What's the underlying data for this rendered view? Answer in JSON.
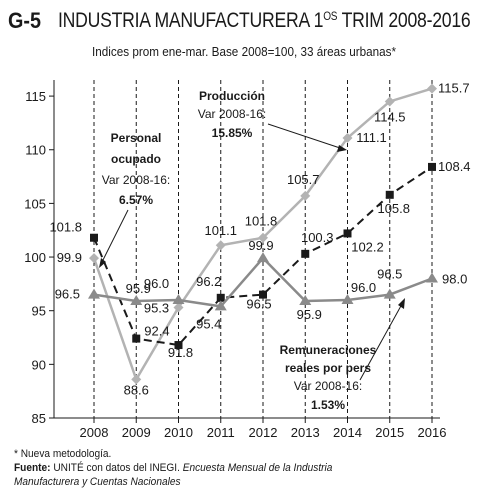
{
  "header": {
    "code": "G-5",
    "title": "INDUSTRIA MANUFACTURERA 1",
    "title_sup": "OS",
    "title_end": " TRIM 2008-2016",
    "subtitle": "Indices prom ene-mar. Base 2008=100, 33 áreas urbanas*"
  },
  "footer": {
    "note": "* Nueva metodología.",
    "source_label": "Fuente:",
    "source_text": " UNITÉ con datos del INEGI. ",
    "source_italic1": "Encuesta Mensual de la Industria",
    "source_italic2": "Manufacturera y Cuentas Nacionales"
  },
  "annotations": {
    "personal": {
      "l1": "Personal",
      "l2": "ocupado",
      "l3": "Var 2008-16:",
      "l4": "6.57%"
    },
    "produccion": {
      "l1": "Producción",
      "l2": "Var 2008-16:",
      "l3": "15.85%"
    },
    "remuneraciones": {
      "l1": "Remuneraciones",
      "l2": "reales por pers",
      "l3": "Var 2008-16:",
      "l4": "1.53%"
    }
  },
  "chart_data": {
    "type": "line",
    "categories": [
      "2008",
      "2009",
      "2010",
      "2011",
      "2012",
      "2013",
      "2014",
      "2015",
      "2016"
    ],
    "yticks": [
      85,
      90,
      95,
      100,
      105,
      110,
      115
    ],
    "ylim": [
      85,
      116.5
    ],
    "series": [
      {
        "name": "Producción",
        "values": [
          99.9,
          88.6,
          95.3,
          101.1,
          101.8,
          105.7,
          111.1,
          114.5,
          115.7
        ],
        "color": "#b3b3b3",
        "style": "solid",
        "marker": "diamond"
      },
      {
        "name": "Personal ocupado",
        "values": [
          101.8,
          92.4,
          91.8,
          96.2,
          96.5,
          100.3,
          102.2,
          105.8,
          108.4
        ],
        "color": "#1a1a1a",
        "style": "dashed",
        "marker": "square"
      },
      {
        "name": "Remuneraciones reales por pers",
        "values": [
          96.5,
          95.9,
          96.0,
          95.4,
          99.9,
          95.9,
          96.0,
          96.5,
          98.0
        ],
        "color": "#8a8a8a",
        "style": "solid",
        "marker": "triangle"
      }
    ],
    "labels": [
      {
        "text": "99.9",
        "x": 0,
        "y": 99.9
      },
      {
        "text": "101.8",
        "x": 0,
        "y": 101.8
      },
      {
        "text": "96.5",
        "x": 0,
        "y": 96.5
      },
      {
        "text": "88.6",
        "x": 1,
        "y": 88.6
      },
      {
        "text": "92.4",
        "x": 1,
        "y": 92.4
      },
      {
        "text": "95.9",
        "x": 1,
        "y": 95.9
      },
      {
        "text": "91.8",
        "x": 2,
        "y": 91.8
      },
      {
        "text": "95.3",
        "x": 2,
        "y": 95.3
      },
      {
        "text": "96.0",
        "x": 2,
        "y": 96.0
      },
      {
        "text": "101.1",
        "x": 3,
        "y": 101.1
      },
      {
        "text": "96.2",
        "x": 3,
        "y": 96.2
      },
      {
        "text": "95.4",
        "x": 3,
        "y": 95.4
      },
      {
        "text": "101.8",
        "x": 4,
        "y": 101.8
      },
      {
        "text": "99.9",
        "x": 4,
        "y": 99.9
      },
      {
        "text": "96.5",
        "x": 4,
        "y": 96.5
      },
      {
        "text": "105.7",
        "x": 5,
        "y": 105.7
      },
      {
        "text": "100.3",
        "x": 5,
        "y": 100.3
      },
      {
        "text": "95.9",
        "x": 5,
        "y": 95.9
      },
      {
        "text": "111.1",
        "x": 6,
        "y": 111.1
      },
      {
        "text": "102.2",
        "x": 6,
        "y": 102.2
      },
      {
        "text": "96.0",
        "x": 6,
        "y": 96.0
      },
      {
        "text": "114.5",
        "x": 7,
        "y": 114.5
      },
      {
        "text": "105.8",
        "x": 7,
        "y": 105.8
      },
      {
        "text": "96.5",
        "x": 7,
        "y": 96.5
      },
      {
        "text": "115.7",
        "x": 8,
        "y": 115.7
      },
      {
        "text": "108.4",
        "x": 8,
        "y": 108.4
      },
      {
        "text": "98.0",
        "x": 8,
        "y": 98.0
      }
    ],
    "grid": "vertical dashed lines at each year"
  }
}
